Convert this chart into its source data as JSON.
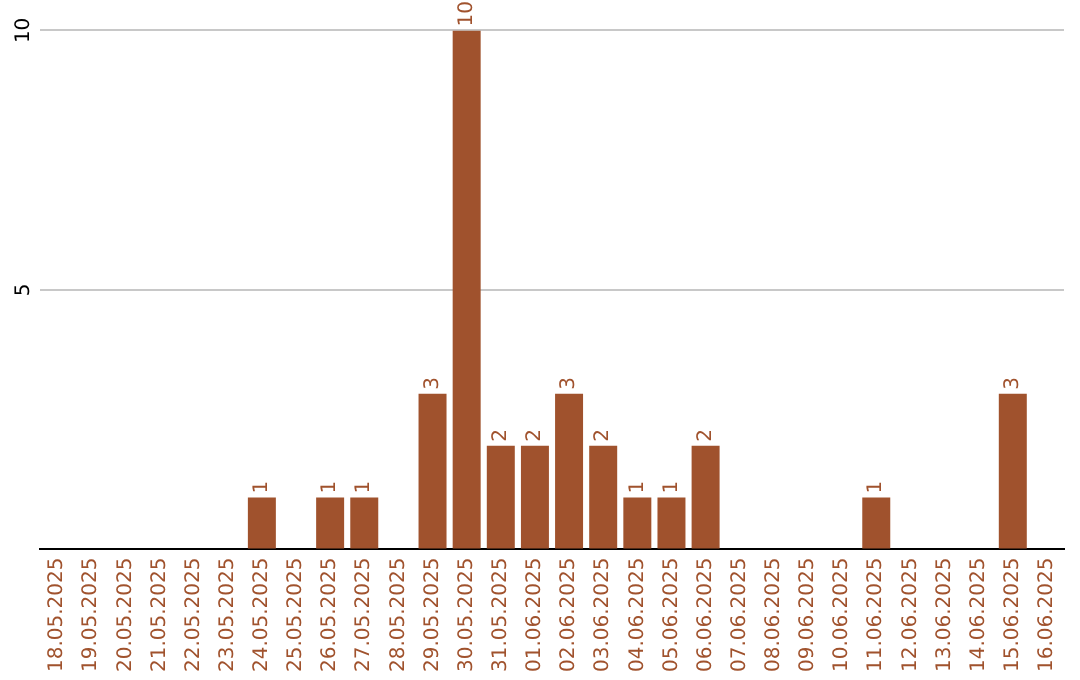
{
  "chart_data": {
    "type": "bar",
    "categories": [
      "18.05.2025",
      "19.05.2025",
      "20.05.2025",
      "21.05.2025",
      "22.05.2025",
      "23.05.2025",
      "24.05.2025",
      "25.05.2025",
      "26.05.2025",
      "27.05.2025",
      "28.05.2025",
      "29.05.2025",
      "30.05.2025",
      "31.05.2025",
      "01.06.2025",
      "02.06.2025",
      "03.06.2025",
      "04.06.2025",
      "05.06.2025",
      "06.06.2025",
      "07.06.2025",
      "08.06.2025",
      "09.06.2025",
      "10.06.2025",
      "11.06.2025",
      "12.06.2025",
      "13.06.2025",
      "14.06.2025",
      "15.06.2025",
      "16.06.2025"
    ],
    "values": [
      0,
      0,
      0,
      0,
      0,
      0,
      1,
      0,
      1,
      1,
      0,
      3,
      10,
      2,
      2,
      3,
      2,
      1,
      1,
      2,
      0,
      0,
      0,
      0,
      1,
      0,
      0,
      0,
      3,
      0
    ],
    "value_labels": [
      null,
      null,
      null,
      null,
      null,
      null,
      "1",
      null,
      "1",
      "1",
      null,
      "3",
      "10",
      "2",
      "2",
      "3",
      "2",
      "1",
      "1",
      "2",
      null,
      null,
      null,
      null,
      "1",
      null,
      null,
      null,
      "3",
      null
    ],
    "color": "#a0522d",
    "ylim": [
      0,
      10
    ],
    "yticks": [
      {
        "value": 0,
        "label": null
      },
      5,
      10
    ],
    "grid": "y",
    "legend": false
  }
}
